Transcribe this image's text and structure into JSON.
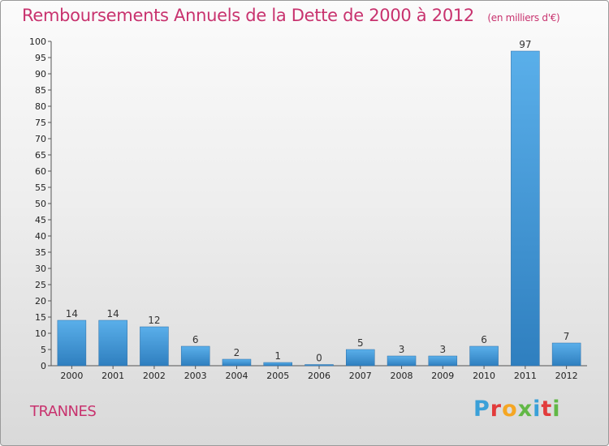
{
  "chart_data": {
    "type": "bar",
    "title": "Remboursements Annuels de la Dette de 2000 à 2012",
    "unit_note": "(en milliers d'€)",
    "categories": [
      "2000",
      "2001",
      "2002",
      "2003",
      "2004",
      "2005",
      "2006",
      "2007",
      "2008",
      "2009",
      "2010",
      "2011",
      "2012"
    ],
    "values": [
      14,
      14,
      12,
      6,
      2,
      1,
      0,
      5,
      3,
      3,
      6,
      97,
      7
    ],
    "ylim": [
      0,
      100
    ],
    "ytick_step": 5,
    "grid": false,
    "bar_color": "#4a9fe0"
  },
  "footer": {
    "town": "TRANNES",
    "brand": "Proxiti",
    "brand_colors": [
      "#3aa0d8",
      "#e23b3b",
      "#f5a623",
      "#62b846",
      "#3aa0d8",
      "#e23b3b",
      "#62b846"
    ]
  }
}
